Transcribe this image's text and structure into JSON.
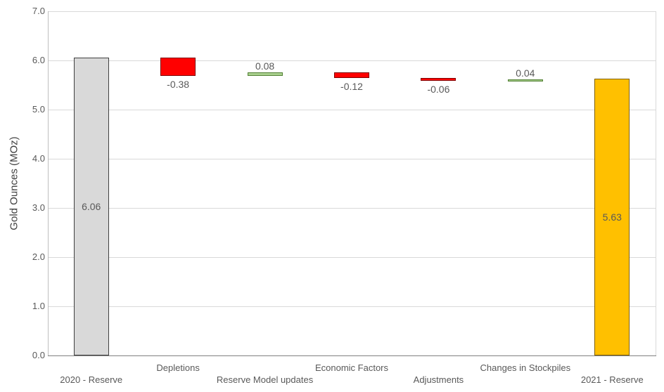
{
  "chart_data": {
    "type": "bar",
    "subtype": "waterfall",
    "title": "",
    "xlabel": "",
    "ylabel": "Gold Ounces (MOz)",
    "ylim": [
      0,
      7
    ],
    "ytick_step": 1.0,
    "grid": "horizontal",
    "legend": "none",
    "yticks": [
      {
        "value": 0,
        "label": "0.0"
      },
      {
        "value": 1,
        "label": "1.0"
      },
      {
        "value": 2,
        "label": "2.0"
      },
      {
        "value": 3,
        "label": "3.0"
      },
      {
        "value": 4,
        "label": "4.0"
      },
      {
        "value": 5,
        "label": "5.0"
      },
      {
        "value": 6,
        "label": "6.0"
      },
      {
        "value": 7,
        "label": "7.0"
      }
    ],
    "categories": [
      "2020 - Reserve",
      "Depletions",
      "Reserve Model updates",
      "Economic Factors",
      "Adjustments",
      "Changes in Stockpiles",
      "2021 - Reserve"
    ],
    "bars": [
      {
        "category": "2020 - Reserve",
        "value": 6.06,
        "label": "6.06",
        "kind": "total",
        "start": 0,
        "end": 6.06,
        "fill": "#d9d9d9",
        "border": "#404040",
        "label_pos": "inside",
        "category_row": "lower"
      },
      {
        "category": "Depletions",
        "value": -0.38,
        "label": "-0.38",
        "kind": "decrease",
        "start": 6.06,
        "end": 5.68,
        "fill": "#ff0000",
        "border": "#7f0000",
        "label_pos": "below",
        "category_row": "upper"
      },
      {
        "category": "Reserve Model updates",
        "value": 0.08,
        "label": "0.08",
        "kind": "increase",
        "start": 5.68,
        "end": 5.76,
        "fill": "#a9d08e",
        "border": "#538135",
        "label_pos": "above",
        "category_row": "lower"
      },
      {
        "category": "Economic Factors",
        "value": -0.12,
        "label": "-0.12",
        "kind": "decrease",
        "start": 5.76,
        "end": 5.64,
        "fill": "#ff0000",
        "border": "#7f0000",
        "label_pos": "below",
        "category_row": "upper"
      },
      {
        "category": "Adjustments",
        "value": -0.06,
        "label": "-0.06",
        "kind": "decrease",
        "start": 5.64,
        "end": 5.58,
        "fill": "#ff0000",
        "border": "#7f0000",
        "label_pos": "below",
        "category_row": "lower"
      },
      {
        "category": "Changes in Stockpiles",
        "value": 0.04,
        "label": "0.04",
        "kind": "increase",
        "start": 5.58,
        "end": 5.62,
        "fill": "#a9d08e",
        "border": "#538135",
        "label_pos": "above",
        "category_row": "upper"
      },
      {
        "category": "2021 - Reserve",
        "value": 5.63,
        "label": "5.63",
        "kind": "total",
        "start": 0,
        "end": 5.63,
        "fill": "#ffc000",
        "border": "#7f6000",
        "label_pos": "inside",
        "category_row": "lower"
      }
    ],
    "colors": {
      "total_fill": "#d9d9d9",
      "total_border": "#404040",
      "final_fill": "#ffc000",
      "final_border": "#7f6000",
      "decrease_fill": "#ff0000",
      "decrease_border": "#7f0000",
      "increase_fill": "#a9d08e",
      "increase_border": "#538135",
      "gridline": "#d9d9d9",
      "axis_line": "#808080",
      "text": "#595959"
    }
  }
}
